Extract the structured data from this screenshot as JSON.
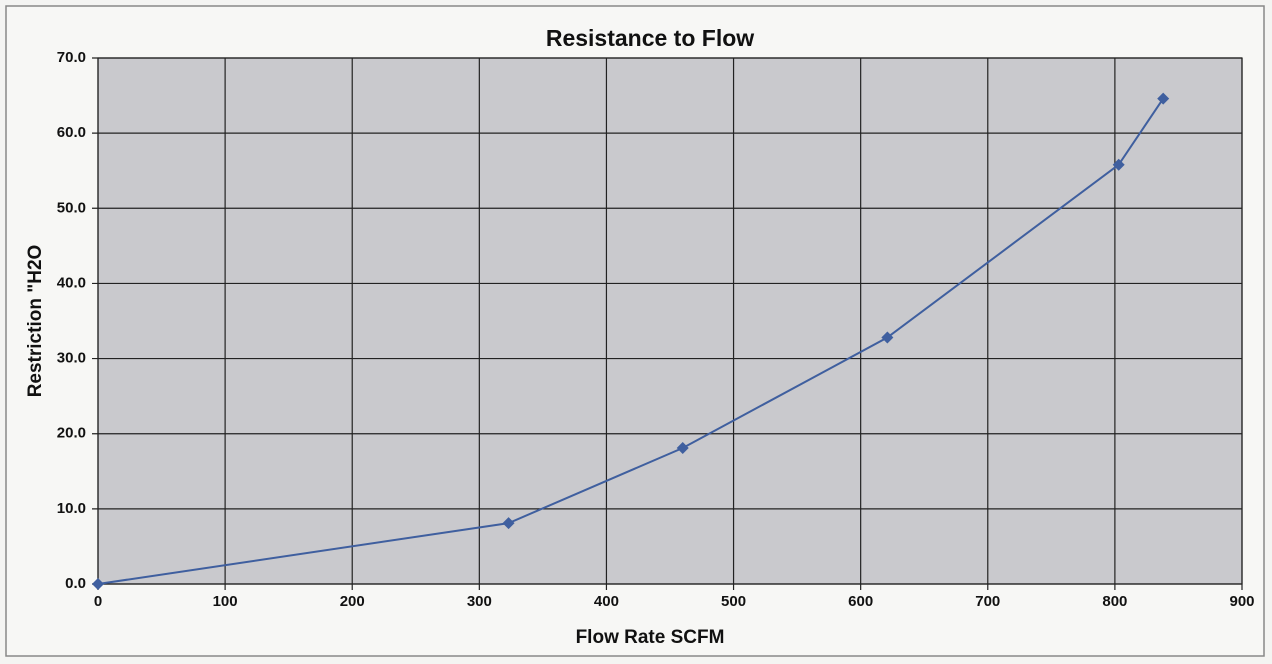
{
  "chart_data": {
    "type": "line",
    "title": "Resistance to Flow",
    "x_label": "Flow Rate SCFM",
    "y_label": "Restriction \"H2O",
    "series": [
      {
        "name": "Restriction",
        "color": "#3f5f9f",
        "x": [
          0,
          323,
          460,
          621,
          803,
          838
        ],
        "values": [
          0.0,
          8.1,
          18.1,
          32.8,
          55.8,
          64.6
        ]
      }
    ],
    "xlim": [
      0,
      900
    ],
    "xticks": [
      0,
      100,
      200,
      300,
      400,
      500,
      600,
      700,
      800,
      900
    ],
    "ylim": [
      0,
      70
    ],
    "yticks": [
      {
        "value": 0,
        "label": "0.0"
      },
      {
        "value": 10,
        "label": "10.0"
      },
      {
        "value": 20,
        "label": "20.0"
      },
      {
        "value": 30,
        "label": "30.0"
      },
      {
        "value": 40,
        "label": "40.0"
      },
      {
        "value": 50,
        "label": "50.0"
      },
      {
        "value": 60,
        "label": "60.0"
      },
      {
        "value": 70,
        "label": "70.0"
      }
    ],
    "grid": true,
    "background": "#c9c9cd"
  }
}
